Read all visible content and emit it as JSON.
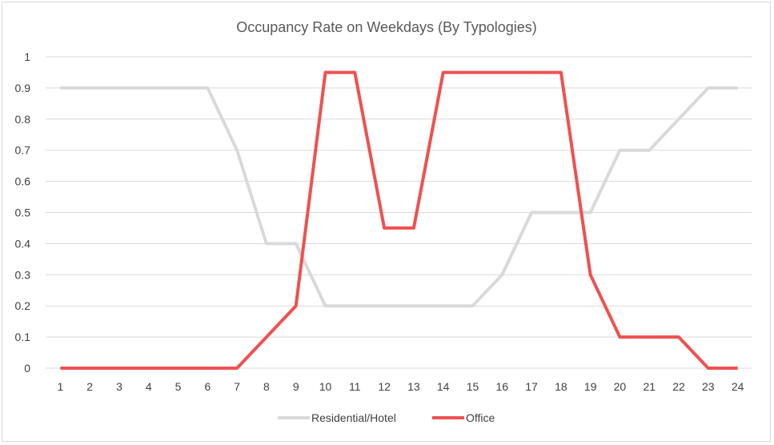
{
  "chart_data": {
    "type": "line",
    "title": "Occupancy Rate on Weekdays (By Typologies)",
    "xlabel": "",
    "ylabel": "",
    "categories": [
      "1",
      "2",
      "3",
      "4",
      "5",
      "6",
      "7",
      "8",
      "9",
      "10",
      "11",
      "12",
      "13",
      "14",
      "15",
      "16",
      "17",
      "18",
      "19",
      "20",
      "21",
      "22",
      "23",
      "24"
    ],
    "ylim": [
      0,
      1
    ],
    "yticks": [
      "0",
      "0.1",
      "0.2",
      "0.3",
      "0.4",
      "0.5",
      "0.6",
      "0.7",
      "0.8",
      "0.9",
      "1"
    ],
    "grid": "horizontal",
    "legend_position": "bottom",
    "series": [
      {
        "name": "Residential/Hotel",
        "color": "#d9d9d9",
        "values": [
          0.9,
          0.9,
          0.9,
          0.9,
          0.9,
          0.9,
          0.7,
          0.4,
          0.4,
          0.2,
          0.2,
          0.2,
          0.2,
          0.2,
          0.2,
          0.3,
          0.5,
          0.5,
          0.5,
          0.7,
          0.7,
          0.8,
          0.9,
          0.9
        ]
      },
      {
        "name": "Office",
        "color": "#f05050",
        "values": [
          0,
          0,
          0,
          0,
          0,
          0,
          0,
          0.1,
          0.2,
          0.95,
          0.95,
          0.45,
          0.45,
          0.95,
          0.95,
          0.95,
          0.95,
          0.95,
          0.3,
          0.1,
          0.1,
          0.1,
          0,
          0
        ]
      }
    ]
  }
}
